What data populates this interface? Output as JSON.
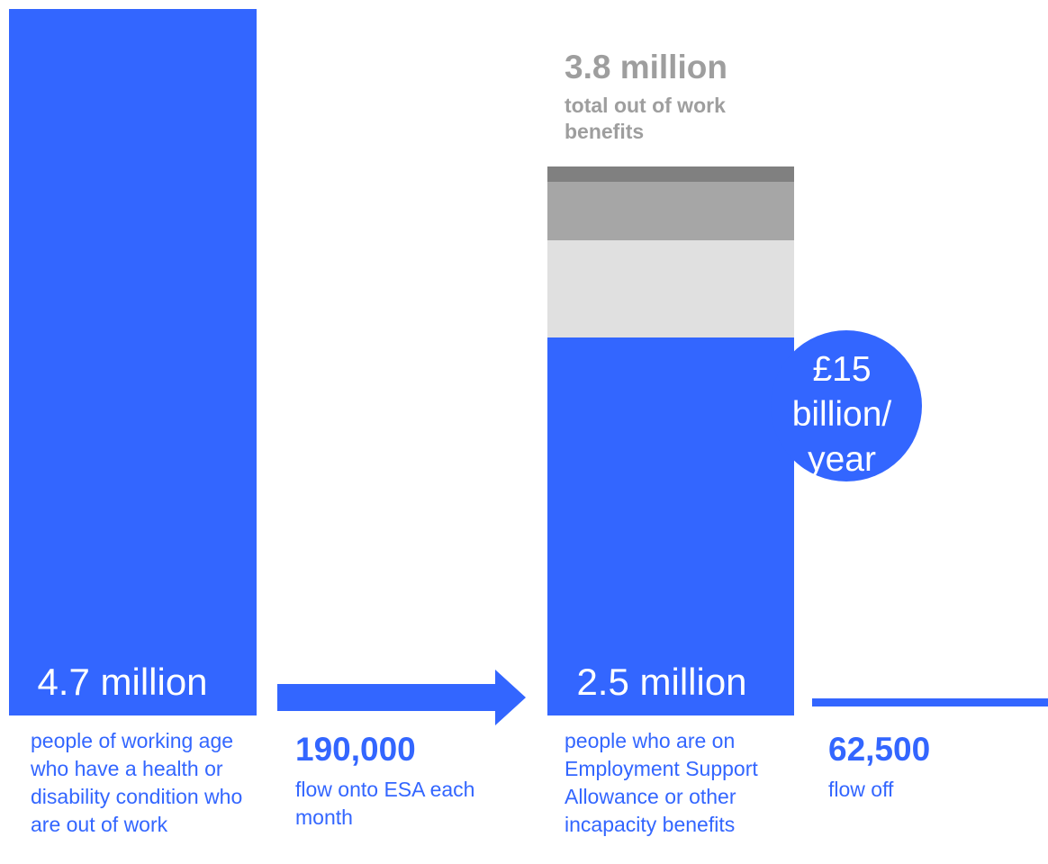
{
  "left_bar": {
    "value": "4.7 million",
    "description": "people of working age who have a health or disability condition who are out of work"
  },
  "flow_on": {
    "value": "190,000",
    "label": "flow onto ESA each month"
  },
  "total": {
    "value": "3.8 million",
    "label": "total out of work benefits"
  },
  "right_bar": {
    "value": "2.5 million",
    "description": "people who are on Employment Support Allowance or other incapacity benefits"
  },
  "cost": {
    "text": "£15\nbillion/\nyear"
  },
  "flow_off": {
    "value": "62,500",
    "label": "flow off"
  },
  "colors": {
    "accent": "#3366ff",
    "grey_text": "#9e9e9e",
    "seg_dark": "#808080",
    "seg_mid": "#a6a6a6",
    "seg_light": "#e0e0e0"
  }
}
